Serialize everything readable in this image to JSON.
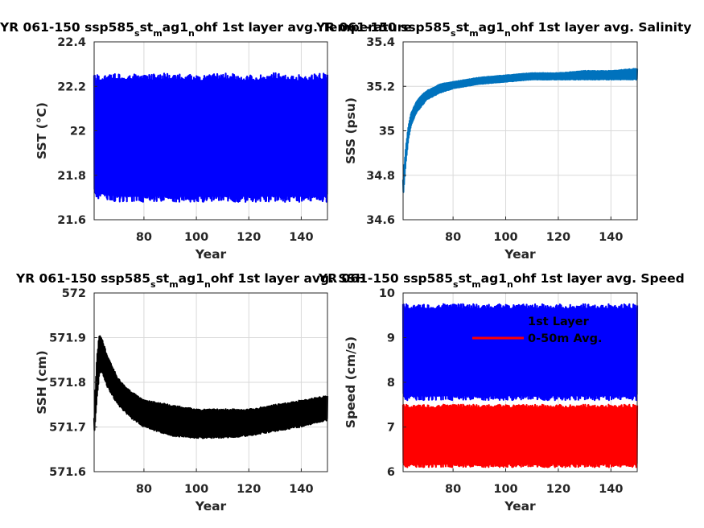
{
  "figure": {
    "background": "#ffffff"
  },
  "chart_data": [
    {
      "type": "line",
      "title_parts": [
        "YR 061-150 ssp585",
        "s",
        "st",
        "m",
        "ag1",
        "n",
        "ohf 1st layer avg. Temperature"
      ],
      "xlabel": "Year",
      "ylabel": "SST (°C)",
      "xlim": [
        61,
        150
      ],
      "ylim": [
        21.6,
        22.4
      ],
      "xticks": [
        80,
        100,
        120,
        140
      ],
      "yticks": [
        21.6,
        21.8,
        22,
        22.2,
        22.4
      ],
      "ytick_labels": [
        "21.6",
        "21.8",
        "22",
        "22.2",
        "22.4"
      ],
      "grid": true,
      "series": [
        {
          "color": "#0000ff",
          "style": "seasonal-cycle",
          "x": [
            61,
            70,
            80,
            90,
            100,
            110,
            120,
            130,
            140,
            150
          ],
          "upper": [
            22.25,
            22.26,
            22.25,
            22.26,
            22.25,
            22.26,
            22.25,
            22.26,
            22.25,
            22.26
          ],
          "lower": [
            21.7,
            21.68,
            21.68,
            21.68,
            21.68,
            21.68,
            21.68,
            21.68,
            21.68,
            21.68
          ]
        }
      ]
    },
    {
      "type": "line",
      "title_parts": [
        "YR 061-150 ssp585",
        "s",
        "st",
        "m",
        "ag1",
        "n",
        "ohf 1st layer avg. Salinity"
      ],
      "xlabel": "Year",
      "ylabel": "SSS (psu)",
      "xlim": [
        61,
        150
      ],
      "ylim": [
        34.6,
        35.4
      ],
      "xticks": [
        80,
        100,
        120,
        140
      ],
      "yticks": [
        34.6,
        34.8,
        35,
        35.2,
        35.4
      ],
      "ytick_labels": [
        "34.6",
        "34.8",
        "35",
        "35.2",
        "35.4"
      ],
      "grid": true,
      "series": [
        {
          "color": "#0072bd",
          "style": "seasonal-cycle",
          "x": [
            61,
            62,
            63,
            64,
            66,
            68,
            70,
            75,
            80,
            90,
            100,
            110,
            120,
            130,
            140,
            150
          ],
          "upper": [
            34.78,
            34.92,
            35.02,
            35.08,
            35.13,
            35.16,
            35.18,
            35.21,
            35.22,
            35.24,
            35.25,
            35.26,
            35.26,
            35.27,
            35.27,
            35.28
          ],
          "lower": [
            34.7,
            34.85,
            34.96,
            35.02,
            35.08,
            35.11,
            35.14,
            35.17,
            35.19,
            35.21,
            35.22,
            35.23,
            35.23,
            35.23,
            35.23,
            35.23
          ]
        }
      ]
    },
    {
      "type": "line",
      "title_parts": [
        "YR 061-150 ssp585",
        "s",
        "st",
        "m",
        "ag1",
        "n",
        "ohf 1st layer avg. SSH"
      ],
      "xlabel": "Year",
      "ylabel": "SSH (cm)",
      "xlim": [
        61,
        150
      ],
      "ylim": [
        571.6,
        572
      ],
      "xticks": [
        80,
        100,
        120,
        140
      ],
      "yticks": [
        571.6,
        571.7,
        571.8,
        571.9,
        572
      ],
      "ytick_labels": [
        "571.6",
        "571.7",
        "571.8",
        "571.9",
        "572"
      ],
      "grid": true,
      "series": [
        {
          "color": "#000000",
          "style": "seasonal-cycle",
          "x": [
            61,
            62,
            63,
            64,
            66,
            70,
            75,
            80,
            90,
            100,
            110,
            120,
            130,
            140,
            150
          ],
          "upper": [
            571.72,
            571.85,
            571.91,
            571.9,
            571.86,
            571.81,
            571.78,
            571.76,
            571.75,
            571.74,
            571.74,
            571.74,
            571.75,
            571.76,
            571.77
          ],
          "lower": [
            571.68,
            571.76,
            571.82,
            571.82,
            571.79,
            571.75,
            571.72,
            571.7,
            571.68,
            571.675,
            571.675,
            571.68,
            571.69,
            571.7,
            571.715
          ]
        }
      ]
    },
    {
      "type": "line",
      "title_parts": [
        "YR 061-150 ssp585",
        "s",
        "st",
        "m",
        "ag1",
        "n",
        "ohf 1st layer avg. Speed"
      ],
      "xlabel": "Year",
      "ylabel": "Speed (cm/s)",
      "xlim": [
        61,
        150
      ],
      "ylim": [
        6,
        10
      ],
      "xticks": [
        80,
        100,
        120,
        140
      ],
      "yticks": [
        6,
        7,
        8,
        9,
        10
      ],
      "ytick_labels": [
        "6",
        "7",
        "8",
        "9",
        "10"
      ],
      "grid": true,
      "legend": {
        "position": "top-right",
        "entries": [
          "1st Layer",
          "0-50m Avg."
        ]
      },
      "series": [
        {
          "name": "1st Layer",
          "color": "#0000ff",
          "style": "seasonal-cycle",
          "x": [
            61,
            80,
            100,
            120,
            150
          ],
          "upper": [
            9.75,
            9.75,
            9.75,
            9.75,
            9.75
          ],
          "lower": [
            7.6,
            7.6,
            7.6,
            7.6,
            7.6
          ]
        },
        {
          "name": "0-50m Avg.",
          "color": "#ff0000",
          "style": "seasonal-cycle",
          "x": [
            61,
            80,
            100,
            120,
            150
          ],
          "upper": [
            7.5,
            7.5,
            7.5,
            7.5,
            7.5
          ],
          "lower": [
            6.1,
            6.1,
            6.1,
            6.1,
            6.1
          ]
        }
      ]
    }
  ]
}
